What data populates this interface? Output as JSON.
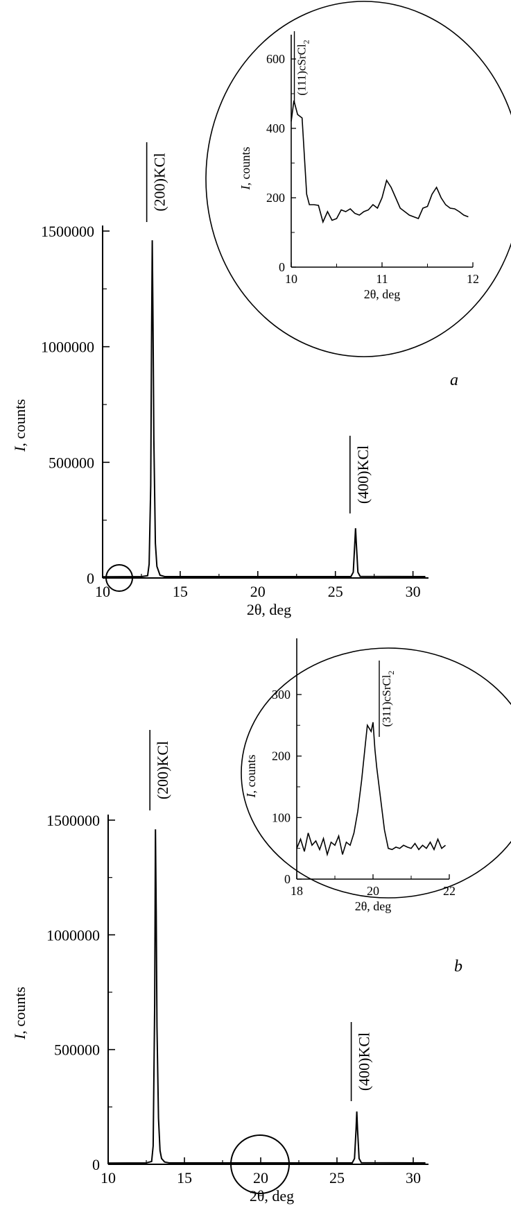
{
  "chart_data": [
    {
      "panel": "a",
      "type": "line",
      "xlabel": "2θ, deg",
      "ylabel_italic": "I",
      "ylabel_rest": ", counts",
      "xlim": [
        10,
        31
      ],
      "ylim": [
        0,
        1500000
      ],
      "xticks": [
        10,
        15,
        20,
        25,
        30
      ],
      "yticks": [
        0,
        500000,
        1000000,
        1500000
      ],
      "peak_labels": [
        {
          "text": "(200)KCl",
          "x": 13.2
        },
        {
          "text": "(400)KCl",
          "x": 26.3
        }
      ],
      "series": [
        {
          "x": [
            10,
            12.5,
            12.9,
            13.0,
            13.1,
            13.15,
            13.2,
            13.25,
            13.3,
            13.4,
            13.5,
            13.7,
            14.0,
            26.0,
            26.15,
            26.25,
            26.3,
            26.35,
            26.45,
            26.6,
            30.8
          ],
          "values": [
            5000,
            6000,
            10000,
            60000,
            400000,
            1000000,
            1460000,
            1100000,
            600000,
            150000,
            50000,
            12000,
            6000,
            6000,
            25000,
            150000,
            215000,
            150000,
            25000,
            7000,
            6000
          ]
        }
      ],
      "inset": {
        "type": "line",
        "xlabel": "2θ, deg",
        "ylabel_italic": "I",
        "ylabel_rest": ", counts",
        "xlim": [
          10,
          12
        ],
        "ylim": [
          0,
          650
        ],
        "xticks": [
          10,
          11,
          12
        ],
        "yticks": [
          0,
          200,
          400,
          600
        ],
        "peak_labels": [
          {
            "text": "(111)cSrCl",
            "sub": "2",
            "x": 10.05
          }
        ],
        "series": [
          {
            "x": [
              10.0,
              10.03,
              10.07,
              10.12,
              10.17,
              10.2,
              10.25,
              10.3,
              10.35,
              10.4,
              10.45,
              10.5,
              10.55,
              10.6,
              10.65,
              10.7,
              10.75,
              10.8,
              10.85,
              10.9,
              10.95,
              11.0,
              11.05,
              11.1,
              11.15,
              11.2,
              11.25,
              11.3,
              11.35,
              11.4,
              11.45,
              11.5,
              11.55,
              11.6,
              11.65,
              11.7,
              11.75,
              11.8,
              11.85,
              11.9,
              11.95
            ],
            "values": [
              420,
              480,
              440,
              430,
              210,
              180,
              180,
              178,
              130,
              160,
              135,
              140,
              165,
              160,
              168,
              155,
              150,
              160,
              165,
              180,
              170,
              200,
              250,
              230,
              200,
              170,
              160,
              150,
              145,
              140,
              170,
              175,
              210,
              230,
              200,
              180,
              170,
              168,
              160,
              150,
              145
            ]
          }
        ]
      }
    },
    {
      "panel": "b",
      "type": "line",
      "xlabel": "2θ, deg",
      "ylabel_italic": "I",
      "ylabel_rest": ", counts",
      "xlim": [
        10,
        31
      ],
      "ylim": [
        0,
        1500000
      ],
      "xticks": [
        10,
        15,
        20,
        25,
        30
      ],
      "yticks": [
        0,
        500000,
        1000000,
        1500000
      ],
      "peak_labels": [
        {
          "text": "(200)KCl",
          "x": 13.1
        },
        {
          "text": "(400)KCl",
          "x": 26.3
        }
      ],
      "series": [
        {
          "x": [
            10,
            12.5,
            12.85,
            12.95,
            13.05,
            13.1,
            13.15,
            13.2,
            13.3,
            13.4,
            13.5,
            13.7,
            14.0,
            26.0,
            26.15,
            26.25,
            26.3,
            26.35,
            26.45,
            26.6,
            30.8
          ],
          "values": [
            5000,
            6000,
            12000,
            80000,
            700000,
            1460000,
            1100000,
            600000,
            200000,
            60000,
            25000,
            10000,
            6000,
            6000,
            25000,
            150000,
            230000,
            150000,
            25000,
            7000,
            6000
          ]
        }
      ],
      "inset": {
        "type": "line",
        "xlabel": "2θ, deg",
        "ylabel_italic": "I",
        "ylabel_rest": ", counts",
        "xlim": [
          18,
          22
        ],
        "ylim": [
          0,
          380
        ],
        "xticks": [
          18,
          20,
          22
        ],
        "yticks": [
          0,
          100,
          200,
          300
        ],
        "peak_labels": [
          {
            "text": "(311)cSrCl",
            "sub": "2",
            "x": 20.2
          }
        ],
        "series": [
          {
            "x": [
              18.0,
              18.1,
              18.2,
              18.3,
              18.4,
              18.5,
              18.6,
              18.7,
              18.8,
              18.9,
              19.0,
              19.1,
              19.2,
              19.3,
              19.4,
              19.5,
              19.6,
              19.7,
              19.8,
              19.85,
              19.9,
              19.95,
              20.0,
              20.05,
              20.1,
              20.2,
              20.3,
              20.4,
              20.5,
              20.6,
              20.7,
              20.8,
              20.9,
              21.0,
              21.1,
              21.2,
              21.3,
              21.4,
              21.5,
              21.6,
              21.7,
              21.8,
              21.9
            ],
            "values": [
              50,
              65,
              45,
              75,
              55,
              62,
              48,
              66,
              40,
              60,
              55,
              70,
              40,
              60,
              55,
              75,
              110,
              160,
              220,
              250,
              245,
              240,
              255,
              210,
              180,
              130,
              80,
              50,
              48,
              52,
              50,
              55,
              52,
              50,
              58,
              48,
              55,
              50,
              60,
              48,
              65,
              50,
              55
            ]
          }
        ]
      }
    }
  ],
  "panel_letters": [
    "a",
    "b"
  ]
}
